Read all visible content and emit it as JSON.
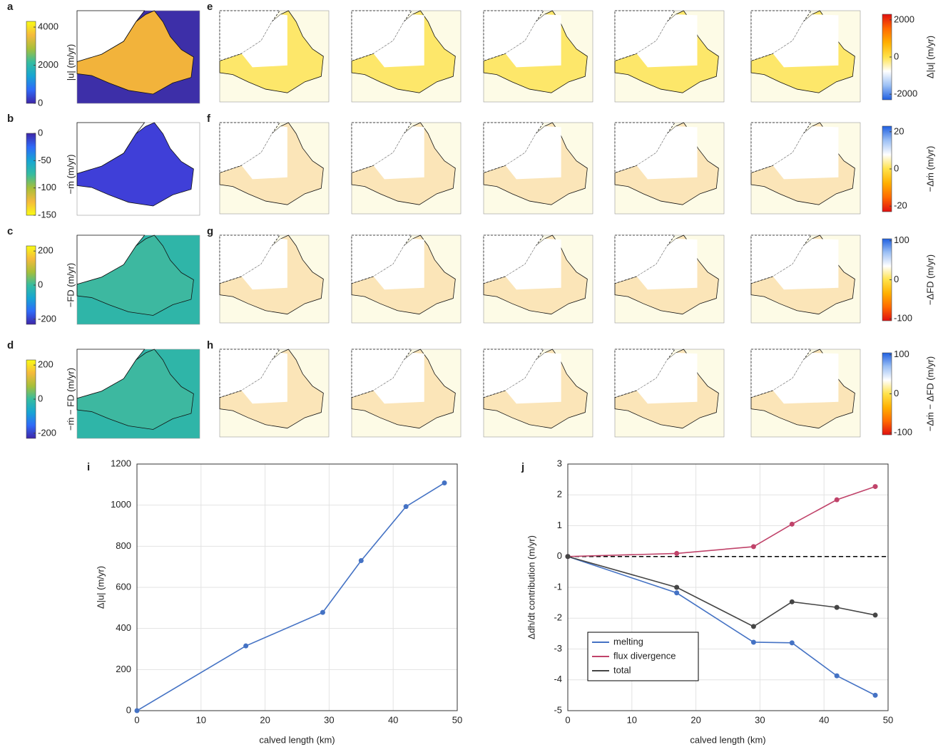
{
  "map_panels": [
    {
      "label": "a",
      "colorbar": {
        "label": "|u| (m/yr)",
        "lim": [
          0,
          4300
        ],
        "ticks": [
          0,
          2000,
          4000
        ],
        "colors": [
          "#3e26a8",
          "#2f6af8",
          "#17a5d3",
          "#35bca0",
          "#a6bf3a",
          "#f5ba3c",
          "#f9fb15"
        ]
      }
    },
    {
      "label": "b",
      "colorbar": {
        "label": "−ṁ (m/yr)",
        "lim": [
          -150,
          0
        ],
        "ticks": [
          0,
          -50,
          -100,
          -150
        ],
        "colors": [
          "#f9fb15",
          "#f5ba3c",
          "#a6bf3a",
          "#35bca0",
          "#17a5d3",
          "#2f6af8",
          "#3e26a8"
        ]
      }
    },
    {
      "label": "c",
      "colorbar": {
        "label": "−FD (m/yr)",
        "lim": [
          -230,
          230
        ],
        "ticks": [
          200,
          0,
          -200
        ],
        "colors": [
          "#3e26a8",
          "#2f6af8",
          "#17a5d3",
          "#35bca0",
          "#a6bf3a",
          "#f5ba3c",
          "#f9fb15"
        ]
      }
    },
    {
      "label": "d",
      "colorbar": {
        "label": "−ṁ − FD (m/yr)",
        "lim": [
          -230,
          230
        ],
        "ticks": [
          200,
          0,
          -200
        ],
        "colors": [
          "#3e26a8",
          "#2f6af8",
          "#17a5d3",
          "#35bca0",
          "#a6bf3a",
          "#f5ba3c",
          "#f9fb15"
        ]
      }
    }
  ],
  "map_rows": [
    {
      "label": "e",
      "colorbar": {
        "label": "Δ|u| (m/yr)",
        "lim": [
          -2300,
          2300
        ],
        "ticks": [
          2000,
          0,
          -2000
        ],
        "colors": [
          "#1f5fe0",
          "#9cc0f5",
          "#ffffff",
          "#ffe24a",
          "#ffb000",
          "#ff6a00",
          "#e01010"
        ]
      }
    },
    {
      "label": "f",
      "colorbar": {
        "label": "−Δṁ (m/yr)",
        "lim": [
          -23,
          23
        ],
        "ticks": [
          20,
          0,
          -20
        ],
        "colors": [
          "#e01010",
          "#ff6a00",
          "#ffb000",
          "#ffe24a",
          "#ffffff",
          "#9cc0f5",
          "#1f5fe0"
        ]
      }
    },
    {
      "label": "g",
      "colorbar": {
        "label": "−ΔFD (m/yr)",
        "lim": [
          -105,
          105
        ],
        "ticks": [
          100,
          0,
          -100
        ],
        "colors": [
          "#e01010",
          "#ff6a00",
          "#ffb000",
          "#ffe24a",
          "#ffffff",
          "#9cc0f5",
          "#1f5fe0"
        ]
      }
    },
    {
      "label": "h",
      "colorbar": {
        "label": "−Δṁ − ΔFD (m/yr)",
        "lim": [
          -105,
          105
        ],
        "ticks": [
          100,
          0,
          -100
        ],
        "colors": [
          "#e01010",
          "#ff6a00",
          "#ffb000",
          "#ffe24a",
          "#ffffff",
          "#9cc0f5",
          "#1f5fe0"
        ]
      }
    }
  ],
  "chart_data": [
    {
      "type": "line",
      "label": "i",
      "x": [
        0,
        17,
        29,
        35,
        42,
        48
      ],
      "series": [
        {
          "color": "#4472c4",
          "values": [
            0,
            315,
            478,
            730,
            993,
            1108
          ]
        }
      ],
      "xlim": [
        0,
        50
      ],
      "xticks": [
        0,
        10,
        20,
        30,
        40,
        50
      ],
      "ylim": [
        0,
        1200
      ],
      "yticks": [
        0,
        200,
        400,
        600,
        800,
        1000,
        1200
      ],
      "xlabel": "calved length (km)",
      "ylabel": "Δ|u| (m/yr)",
      "grid": true
    },
    {
      "type": "line",
      "label": "j",
      "x": [
        0,
        17,
        29,
        35,
        42,
        48
      ],
      "series": [
        {
          "name": "melting",
          "color": "#4472c4",
          "values": [
            0,
            -1.18,
            -2.78,
            -2.8,
            -3.87,
            -4.5
          ]
        },
        {
          "name": "flux divergence",
          "color": "#c0436a",
          "values": [
            0,
            0.1,
            0.32,
            1.05,
            1.84,
            2.27
          ]
        },
        {
          "name": "total",
          "color": "#454545",
          "values": [
            0,
            -1.0,
            -2.27,
            -1.47,
            -1.65,
            -1.9
          ]
        }
      ],
      "xlim": [
        0,
        50
      ],
      "xticks": [
        0,
        10,
        20,
        30,
        40,
        50
      ],
      "ylim": [
        -5,
        3
      ],
      "yticks": [
        -5,
        -4,
        -3,
        -2,
        -1,
        0,
        1,
        2,
        3
      ],
      "xlabel": "calved length (km)",
      "ylabel": "Δdh/dt contribution (m/yr)",
      "grid": true,
      "zero_line": true,
      "legend": "lower left"
    }
  ]
}
